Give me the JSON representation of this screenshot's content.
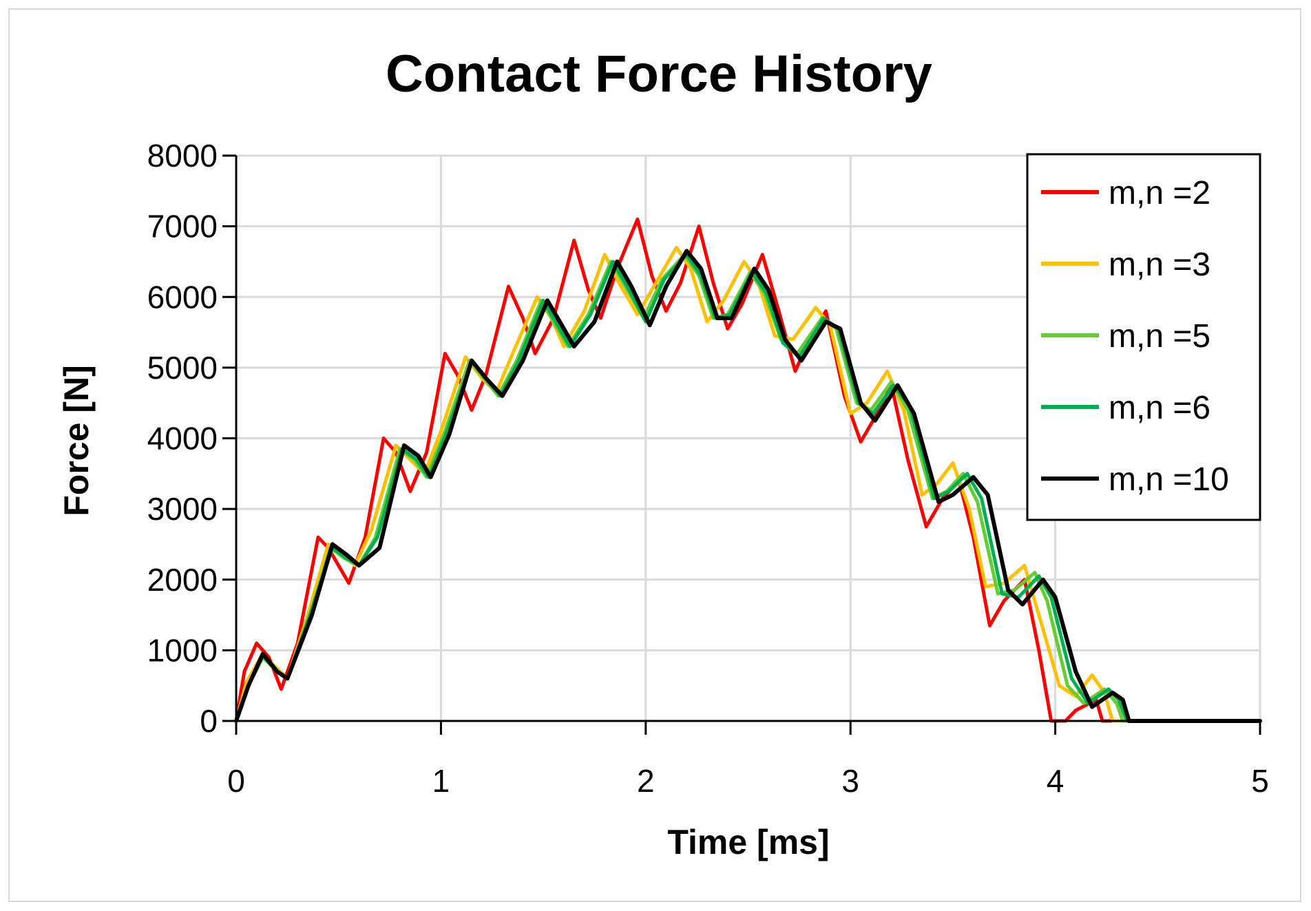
{
  "chart_data": {
    "type": "line",
    "title": "Contact Force History",
    "xlabel": "Time [ms]",
    "ylabel": "Force [N]",
    "xlim": [
      0,
      5
    ],
    "ylim": [
      0,
      8000
    ],
    "x_ticks": [
      0,
      1,
      2,
      3,
      4,
      5
    ],
    "y_ticks": [
      0,
      1000,
      2000,
      3000,
      4000,
      5000,
      6000,
      7000,
      8000
    ],
    "grid": true,
    "legend_position": "top-right",
    "series": [
      {
        "name": "m,n =2",
        "color": "#ff0000",
        "points": [
          [
            0,
            0
          ],
          [
            0.04,
            700
          ],
          [
            0.1,
            1100
          ],
          [
            0.16,
            900
          ],
          [
            0.22,
            450
          ],
          [
            0.3,
            1100
          ],
          [
            0.4,
            2600
          ],
          [
            0.45,
            2450
          ],
          [
            0.55,
            1950
          ],
          [
            0.63,
            2600
          ],
          [
            0.72,
            4000
          ],
          [
            0.78,
            3800
          ],
          [
            0.85,
            3250
          ],
          [
            0.93,
            3800
          ],
          [
            1.02,
            5200
          ],
          [
            1.08,
            4900
          ],
          [
            1.15,
            4400
          ],
          [
            1.22,
            4900
          ],
          [
            1.33,
            6150
          ],
          [
            1.4,
            5700
          ],
          [
            1.46,
            5200
          ],
          [
            1.55,
            5700
          ],
          [
            1.65,
            6800
          ],
          [
            1.72,
            6100
          ],
          [
            1.78,
            5700
          ],
          [
            1.86,
            6400
          ],
          [
            1.96,
            7100
          ],
          [
            2.03,
            6300
          ],
          [
            2.1,
            5800
          ],
          [
            2.17,
            6200
          ],
          [
            2.26,
            7000
          ],
          [
            2.33,
            6200
          ],
          [
            2.4,
            5550
          ],
          [
            2.47,
            5900
          ],
          [
            2.57,
            6600
          ],
          [
            2.65,
            5800
          ],
          [
            2.73,
            4950
          ],
          [
            2.8,
            5400
          ],
          [
            2.88,
            5800
          ],
          [
            2.97,
            4600
          ],
          [
            3.05,
            3950
          ],
          [
            3.12,
            4300
          ],
          [
            3.2,
            4750
          ],
          [
            3.28,
            3700
          ],
          [
            3.37,
            2750
          ],
          [
            3.45,
            3150
          ],
          [
            3.53,
            3400
          ],
          [
            3.6,
            2600
          ],
          [
            3.68,
            1350
          ],
          [
            3.75,
            1700
          ],
          [
            3.85,
            2000
          ],
          [
            3.92,
            1000
          ],
          [
            3.98,
            0
          ],
          [
            4.05,
            0
          ],
          [
            4.1,
            150
          ],
          [
            4.2,
            300
          ],
          [
            4.23,
            0
          ],
          [
            5,
            0
          ]
        ]
      },
      {
        "name": "m,n =3",
        "color": "#ffc000",
        "points": [
          [
            0,
            0
          ],
          [
            0.05,
            550
          ],
          [
            0.12,
            900
          ],
          [
            0.18,
            800
          ],
          [
            0.25,
            600
          ],
          [
            0.35,
            1500
          ],
          [
            0.45,
            2500
          ],
          [
            0.52,
            2350
          ],
          [
            0.58,
            2200
          ],
          [
            0.66,
            2700
          ],
          [
            0.78,
            3900
          ],
          [
            0.85,
            3700
          ],
          [
            0.92,
            3500
          ],
          [
            1.0,
            4100
          ],
          [
            1.12,
            5150
          ],
          [
            1.2,
            4850
          ],
          [
            1.27,
            4650
          ],
          [
            1.35,
            5200
          ],
          [
            1.47,
            6000
          ],
          [
            1.54,
            5700
          ],
          [
            1.6,
            5300
          ],
          [
            1.7,
            5800
          ],
          [
            1.8,
            6600
          ],
          [
            1.87,
            6200
          ],
          [
            1.96,
            5750
          ],
          [
            2.05,
            6200
          ],
          [
            2.15,
            6700
          ],
          [
            2.22,
            6400
          ],
          [
            2.3,
            5650
          ],
          [
            2.38,
            5950
          ],
          [
            2.48,
            6500
          ],
          [
            2.55,
            6200
          ],
          [
            2.63,
            5450
          ],
          [
            2.72,
            5400
          ],
          [
            2.83,
            5850
          ],
          [
            2.9,
            5600
          ],
          [
            3.0,
            4350
          ],
          [
            3.08,
            4500
          ],
          [
            3.18,
            4950
          ],
          [
            3.26,
            4400
          ],
          [
            3.35,
            3200
          ],
          [
            3.42,
            3350
          ],
          [
            3.5,
            3650
          ],
          [
            3.58,
            3000
          ],
          [
            3.66,
            1900
          ],
          [
            3.75,
            1950
          ],
          [
            3.85,
            2200
          ],
          [
            3.92,
            1500
          ],
          [
            4.02,
            500
          ],
          [
            4.1,
            350
          ],
          [
            4.18,
            650
          ],
          [
            4.24,
            400
          ],
          [
            4.28,
            0
          ],
          [
            5,
            0
          ]
        ]
      },
      {
        "name": "m,n =5",
        "color": "#66cc33",
        "points": [
          [
            0,
            0
          ],
          [
            0.06,
            500
          ],
          [
            0.13,
            900
          ],
          [
            0.2,
            700
          ],
          [
            0.25,
            600
          ],
          [
            0.36,
            1500
          ],
          [
            0.46,
            2450
          ],
          [
            0.53,
            2300
          ],
          [
            0.6,
            2200
          ],
          [
            0.68,
            2600
          ],
          [
            0.8,
            3850
          ],
          [
            0.87,
            3700
          ],
          [
            0.93,
            3450
          ],
          [
            1.02,
            4100
          ],
          [
            1.14,
            5100
          ],
          [
            1.21,
            4850
          ],
          [
            1.28,
            4600
          ],
          [
            1.37,
            5100
          ],
          [
            1.49,
            5950
          ],
          [
            1.56,
            5600
          ],
          [
            1.62,
            5300
          ],
          [
            1.72,
            5750
          ],
          [
            1.83,
            6500
          ],
          [
            1.9,
            6150
          ],
          [
            1.99,
            5700
          ],
          [
            2.08,
            6250
          ],
          [
            2.19,
            6600
          ],
          [
            2.26,
            6300
          ],
          [
            2.33,
            5700
          ],
          [
            2.4,
            5750
          ],
          [
            2.51,
            6350
          ],
          [
            2.58,
            6050
          ],
          [
            2.66,
            5400
          ],
          [
            2.74,
            5200
          ],
          [
            2.86,
            5700
          ],
          [
            2.93,
            5550
          ],
          [
            3.03,
            4500
          ],
          [
            3.1,
            4400
          ],
          [
            3.2,
            4800
          ],
          [
            3.28,
            4400
          ],
          [
            3.4,
            3150
          ],
          [
            3.47,
            3250
          ],
          [
            3.55,
            3500
          ],
          [
            3.62,
            3100
          ],
          [
            3.72,
            1800
          ],
          [
            3.8,
            1850
          ],
          [
            3.9,
            2100
          ],
          [
            3.96,
            1700
          ],
          [
            4.06,
            500
          ],
          [
            4.14,
            250
          ],
          [
            4.24,
            450
          ],
          [
            4.3,
            250
          ],
          [
            4.33,
            0
          ],
          [
            5,
            0
          ]
        ]
      },
      {
        "name": "m,n =6",
        "color": "#00b050",
        "points": [
          [
            0,
            0
          ],
          [
            0.06,
            500
          ],
          [
            0.13,
            920
          ],
          [
            0.2,
            700
          ],
          [
            0.25,
            600
          ],
          [
            0.36,
            1500
          ],
          [
            0.47,
            2450
          ],
          [
            0.54,
            2300
          ],
          [
            0.6,
            2200
          ],
          [
            0.69,
            2600
          ],
          [
            0.81,
            3850
          ],
          [
            0.88,
            3700
          ],
          [
            0.94,
            3450
          ],
          [
            1.03,
            4100
          ],
          [
            1.15,
            5100
          ],
          [
            1.22,
            4850
          ],
          [
            1.29,
            4600
          ],
          [
            1.38,
            5100
          ],
          [
            1.5,
            5950
          ],
          [
            1.57,
            5600
          ],
          [
            1.63,
            5300
          ],
          [
            1.73,
            5750
          ],
          [
            1.84,
            6500
          ],
          [
            1.91,
            6150
          ],
          [
            2.0,
            5650
          ],
          [
            2.09,
            6250
          ],
          [
            2.2,
            6600
          ],
          [
            2.27,
            6300
          ],
          [
            2.34,
            5700
          ],
          [
            2.41,
            5750
          ],
          [
            2.52,
            6350
          ],
          [
            2.59,
            6050
          ],
          [
            2.67,
            5350
          ],
          [
            2.75,
            5150
          ],
          [
            2.87,
            5700
          ],
          [
            2.94,
            5550
          ],
          [
            3.04,
            4500
          ],
          [
            3.11,
            4350
          ],
          [
            3.21,
            4750
          ],
          [
            3.29,
            4450
          ],
          [
            3.41,
            3150
          ],
          [
            3.48,
            3250
          ],
          [
            3.57,
            3500
          ],
          [
            3.64,
            3150
          ],
          [
            3.74,
            1800
          ],
          [
            3.82,
            1750
          ],
          [
            3.92,
            2050
          ],
          [
            3.98,
            1750
          ],
          [
            4.08,
            600
          ],
          [
            4.16,
            250
          ],
          [
            4.26,
            450
          ],
          [
            4.31,
            300
          ],
          [
            4.35,
            0
          ],
          [
            5,
            0
          ]
        ]
      },
      {
        "name": "m,n =10",
        "color": "#000000",
        "points": [
          [
            0,
            0
          ],
          [
            0.06,
            500
          ],
          [
            0.13,
            950
          ],
          [
            0.2,
            700
          ],
          [
            0.25,
            600
          ],
          [
            0.37,
            1500
          ],
          [
            0.47,
            2500
          ],
          [
            0.54,
            2350
          ],
          [
            0.6,
            2200
          ],
          [
            0.7,
            2450
          ],
          [
            0.82,
            3900
          ],
          [
            0.89,
            3750
          ],
          [
            0.95,
            3450
          ],
          [
            1.04,
            4050
          ],
          [
            1.15,
            5100
          ],
          [
            1.22,
            4850
          ],
          [
            1.3,
            4600
          ],
          [
            1.4,
            5100
          ],
          [
            1.52,
            5950
          ],
          [
            1.59,
            5600
          ],
          [
            1.65,
            5300
          ],
          [
            1.75,
            5650
          ],
          [
            1.86,
            6500
          ],
          [
            1.93,
            6150
          ],
          [
            2.02,
            5600
          ],
          [
            2.1,
            6150
          ],
          [
            2.2,
            6650
          ],
          [
            2.27,
            6400
          ],
          [
            2.35,
            5700
          ],
          [
            2.42,
            5700
          ],
          [
            2.53,
            6400
          ],
          [
            2.6,
            6100
          ],
          [
            2.68,
            5400
          ],
          [
            2.76,
            5100
          ],
          [
            2.88,
            5650
          ],
          [
            2.95,
            5550
          ],
          [
            3.05,
            4500
          ],
          [
            3.12,
            4250
          ],
          [
            3.23,
            4750
          ],
          [
            3.31,
            4350
          ],
          [
            3.43,
            3100
          ],
          [
            3.5,
            3200
          ],
          [
            3.6,
            3450
          ],
          [
            3.67,
            3200
          ],
          [
            3.77,
            1850
          ],
          [
            3.84,
            1650
          ],
          [
            3.94,
            2000
          ],
          [
            4.0,
            1750
          ],
          [
            4.1,
            700
          ],
          [
            4.18,
            200
          ],
          [
            4.28,
            400
          ],
          [
            4.33,
            300
          ],
          [
            4.36,
            0
          ],
          [
            5,
            0
          ]
        ]
      }
    ]
  }
}
